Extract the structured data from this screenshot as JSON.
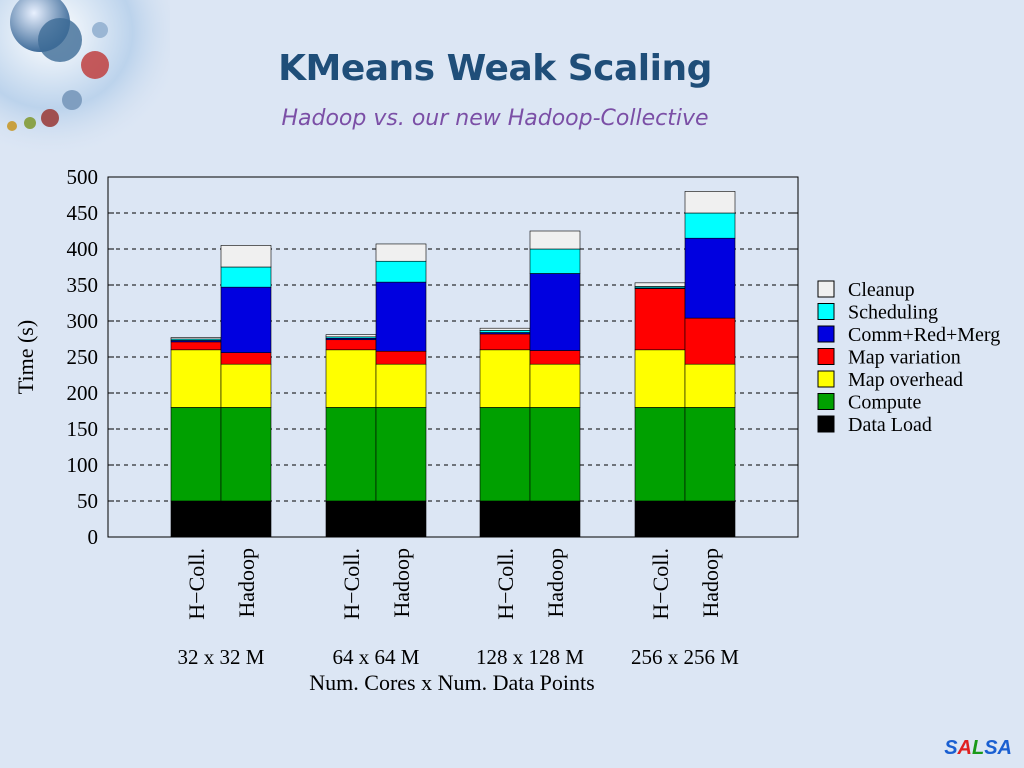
{
  "slide": {
    "title": "KMeans Weak Scaling",
    "subtitle": "Hadoop vs. our new Hadoop-Collective",
    "logo": "SALSA",
    "logo_colors": [
      "#1a5fd1",
      "#e02020",
      "#1a9a1a",
      "#1a5fd1",
      "#1a5fd1"
    ]
  },
  "chart_data": {
    "type": "bar",
    "stacked": true,
    "ylabel": "Time (s)",
    "xlabel": "Num. Cores x Num. Data Points",
    "ylim": [
      0,
      500
    ],
    "yticks": [
      0,
      50,
      100,
      150,
      200,
      250,
      300,
      350,
      400,
      450,
      500
    ],
    "grid": "dashed horizontal",
    "legend_position": "right",
    "groups": [
      "32 x 32 M",
      "64 x 64 M",
      "128 x 128 M",
      "256 x 256 M"
    ],
    "bar_labels": [
      "H−Coll.",
      "Hadoop"
    ],
    "categories": [
      "32 x 32 M H−Coll.",
      "32 x 32 M Hadoop",
      "64 x 64 M H−Coll.",
      "64 x 64 M Hadoop",
      "128 x 128 M H−Coll.",
      "128 x 128 M Hadoop",
      "256 x 256 M H−Coll.",
      "256 x 256 M Hadoop"
    ],
    "series": [
      {
        "name": "Data Load",
        "color": "#000000",
        "values": [
          50,
          50,
          50,
          50,
          50,
          50,
          50,
          50
        ]
      },
      {
        "name": "Compute",
        "color": "#00a000",
        "values": [
          130,
          130,
          130,
          130,
          130,
          130,
          130,
          130
        ]
      },
      {
        "name": "Map overhead",
        "color": "#ffff00",
        "values": [
          80,
          60,
          80,
          60,
          80,
          60,
          80,
          60
        ]
      },
      {
        "name": "Map variation",
        "color": "#ff0000",
        "values": [
          11,
          16,
          14,
          18,
          22,
          19,
          85,
          64
        ]
      },
      {
        "name": "Comm+Red+Merg",
        "color": "#0000e0",
        "values": [
          2,
          91,
          2,
          96,
          2,
          107,
          1,
          111
        ]
      },
      {
        "name": "Scheduling",
        "color": "#00ffff",
        "values": [
          2,
          28,
          2,
          29,
          3,
          34,
          2,
          35
        ]
      },
      {
        "name": "Cleanup",
        "color": "#f0f0f0",
        "values": [
          2,
          30,
          3,
          24,
          3,
          25,
          5,
          30
        ]
      }
    ],
    "legend_order": [
      "Cleanup",
      "Scheduling",
      "Comm+Red+Merg",
      "Map variation",
      "Map overhead",
      "Compute",
      "Data Load"
    ]
  }
}
